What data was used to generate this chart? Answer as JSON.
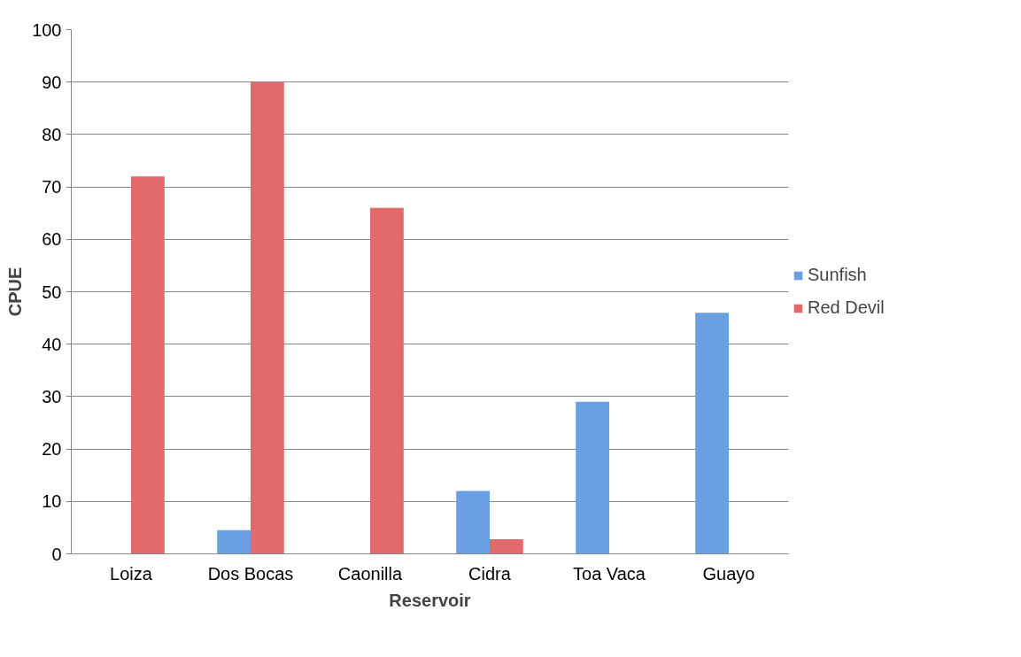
{
  "chart_data": {
    "type": "bar",
    "xlabel": "Reservoir",
    "ylabel": "CPUE",
    "categories": [
      "Loiza",
      "Dos Bocas",
      "Caonilla",
      "Cidra",
      "Toa Vaca",
      "Guayo"
    ],
    "series": [
      {
        "name": "Sunfish",
        "color": "#6a9fe3",
        "values": [
          0,
          4.5,
          0,
          12,
          29,
          46
        ]
      },
      {
        "name": "Red Devil",
        "color": "#e36a6a",
        "values": [
          72,
          90,
          66,
          2.8,
          0,
          0
        ]
      }
    ],
    "ylim": [
      0,
      100
    ],
    "yticks": [
      0,
      10,
      20,
      30,
      40,
      50,
      60,
      70,
      80,
      90,
      100
    ],
    "grid": "y",
    "legend": "right"
  }
}
